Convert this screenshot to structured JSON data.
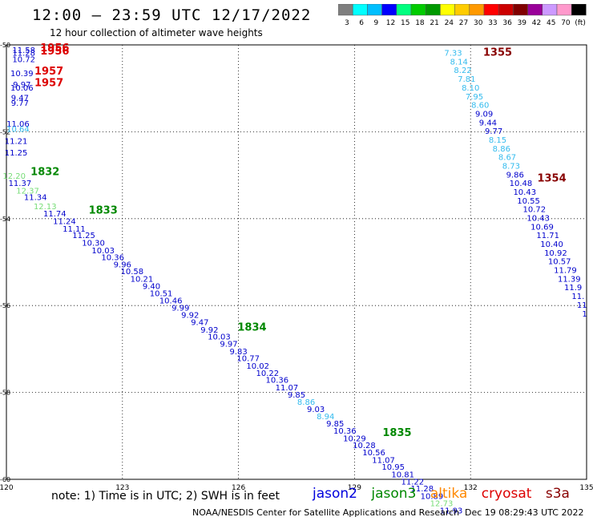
{
  "title": "12:00 – 23:59 UTC 12/17/2022",
  "subtitle": "12 hour collection of altimeter wave heights",
  "note": "note:  1) Time is in UTC;  2) SWH is in feet",
  "credit": "NOAA/NESDIS Center for Satellite Applications and Research",
  "generated": "Dec 19 08:29:43 UTC 2022",
  "legend": {
    "labels": [
      "3",
      "6",
      "9",
      "12",
      "15",
      "18",
      "21",
      "24",
      "27",
      "30",
      "33",
      "36",
      "39",
      "42",
      "45",
      "70",
      "(ft)"
    ],
    "colors": [
      "#7f7f7f",
      "#00ffff",
      "#00bfff",
      "#0000ff",
      "#00ff7f",
      "#00cc00",
      "#009900",
      "#ffff00",
      "#ffcc00",
      "#ff9900",
      "#ff0000",
      "#cc0000",
      "#800000",
      "#990099",
      "#cc99ff",
      "#ff99cc",
      "#000000"
    ]
  },
  "satellites": [
    {
      "name": "jason2",
      "color": "#0000dd"
    },
    {
      "name": "jason3",
      "color": "#008800"
    },
    {
      "name": "altika",
      "color": "#ff8800"
    },
    {
      "name": "cryosat",
      "color": "#dd0000"
    },
    {
      "name": "s3a",
      "color": "#880000"
    }
  ],
  "map": {
    "lon_range": [
      120,
      135
    ],
    "lat_range": [
      -60,
      -50
    ],
    "lon_ticks": [
      "120",
      "123",
      "126",
      "129",
      "132",
      "135"
    ],
    "lat_ticks": [
      "-50",
      "-52",
      "-54",
      "-56",
      "-58",
      "-60"
    ]
  },
  "observations": [
    {
      "lon": 120.45,
      "lat": -50.18,
      "v": "11.58",
      "c": "#0000cc"
    },
    {
      "lon": 120.45,
      "lat": -50.25,
      "v": "11.28",
      "c": "#0000cc"
    },
    {
      "lon": 120.45,
      "lat": -50.4,
      "v": "10.72",
      "c": "#0000cc"
    },
    {
      "lon": 120.4,
      "lat": -50.72,
      "v": "10.39",
      "c": "#0000cc"
    },
    {
      "lon": 120.4,
      "lat": -50.98,
      "v": "9.97",
      "c": "#0000cc"
    },
    {
      "lon": 120.4,
      "lat": -51.05,
      "v": "10.06",
      "c": "#0000cc"
    },
    {
      "lon": 120.35,
      "lat": -51.28,
      "v": "9.47",
      "c": "#0000cc"
    },
    {
      "lon": 120.35,
      "lat": -51.4,
      "v": "9.77",
      "c": "#0000cc"
    },
    {
      "lon": 120.3,
      "lat": -51.88,
      "v": "11.06",
      "c": "#0000cc"
    },
    {
      "lon": 120.3,
      "lat": -52.0,
      "v": "10.64",
      "c": "#33bbee"
    },
    {
      "lon": 120.25,
      "lat": -52.28,
      "v": "11.21",
      "c": "#0000cc"
    },
    {
      "lon": 120.25,
      "lat": -52.55,
      "v": "11.25",
      "c": "#0000cc"
    },
    {
      "lon": 120.2,
      "lat": -53.08,
      "v": "12.20",
      "c": "#77dd77"
    },
    {
      "lon": 120.35,
      "lat": -53.25,
      "v": "11.37",
      "c": "#0000cc"
    },
    {
      "lon": 120.55,
      "lat": -53.42,
      "v": "12.37",
      "c": "#77dd77"
    },
    {
      "lon": 120.75,
      "lat": -53.57,
      "v": "11.34",
      "c": "#0000cc"
    },
    {
      "lon": 121.0,
      "lat": -53.78,
      "v": "12.13",
      "c": "#77dd77"
    },
    {
      "lon": 121.25,
      "lat": -53.95,
      "v": "11.74",
      "c": "#0000cc"
    },
    {
      "lon": 121.5,
      "lat": -54.12,
      "v": "11.24",
      "c": "#0000cc"
    },
    {
      "lon": 121.75,
      "lat": -54.3,
      "v": "11.11",
      "c": "#0000cc"
    },
    {
      "lon": 122.0,
      "lat": -54.45,
      "v": "11.25",
      "c": "#0000cc"
    },
    {
      "lon": 122.25,
      "lat": -54.62,
      "v": "10.30",
      "c": "#0000cc"
    },
    {
      "lon": 122.5,
      "lat": -54.8,
      "v": "10.03",
      "c": "#0000cc"
    },
    {
      "lon": 122.75,
      "lat": -54.95,
      "v": "10.36",
      "c": "#0000cc"
    },
    {
      "lon": 123.0,
      "lat": -55.12,
      "v": "9.96",
      "c": "#0000cc"
    },
    {
      "lon": 123.25,
      "lat": -55.28,
      "v": "10.58",
      "c": "#0000cc"
    },
    {
      "lon": 123.5,
      "lat": -55.45,
      "v": "10.21",
      "c": "#0000cc"
    },
    {
      "lon": 123.75,
      "lat": -55.62,
      "v": "9.40",
      "c": "#0000cc"
    },
    {
      "lon": 124.0,
      "lat": -55.78,
      "v": "10.51",
      "c": "#0000cc"
    },
    {
      "lon": 124.25,
      "lat": -55.95,
      "v": "10.46",
      "c": "#0000cc"
    },
    {
      "lon": 124.5,
      "lat": -56.12,
      "v": "9.99",
      "c": "#0000cc"
    },
    {
      "lon": 124.75,
      "lat": -56.28,
      "v": "9.92",
      "c": "#0000cc"
    },
    {
      "lon": 125.0,
      "lat": -56.45,
      "v": "9.47",
      "c": "#0000cc"
    },
    {
      "lon": 125.25,
      "lat": -56.62,
      "v": "9.92",
      "c": "#0000cc"
    },
    {
      "lon": 125.5,
      "lat": -56.78,
      "v": "10.03",
      "c": "#0000cc"
    },
    {
      "lon": 125.75,
      "lat": -56.95,
      "v": "9.97",
      "c": "#0000cc"
    },
    {
      "lon": 126.0,
      "lat": -57.12,
      "v": "9.83",
      "c": "#0000cc"
    },
    {
      "lon": 126.25,
      "lat": -57.28,
      "v": "10.77",
      "c": "#0000cc"
    },
    {
      "lon": 126.5,
      "lat": -57.45,
      "v": "10.02",
      "c": "#0000cc"
    },
    {
      "lon": 126.75,
      "lat": -57.62,
      "v": "10.22",
      "c": "#0000cc"
    },
    {
      "lon": 127.0,
      "lat": -57.78,
      "v": "10.36",
      "c": "#0000cc"
    },
    {
      "lon": 127.25,
      "lat": -57.95,
      "v": "11.07",
      "c": "#0000cc"
    },
    {
      "lon": 127.5,
      "lat": -58.12,
      "v": "9.85",
      "c": "#0000cc"
    },
    {
      "lon": 127.75,
      "lat": -58.28,
      "v": "8.86",
      "c": "#33bbee"
    },
    {
      "lon": 128.0,
      "lat": -58.45,
      "v": "9.03",
      "c": "#0000cc"
    },
    {
      "lon": 128.25,
      "lat": -58.62,
      "v": "8.94",
      "c": "#33bbee"
    },
    {
      "lon": 128.5,
      "lat": -58.78,
      "v": "9.85",
      "c": "#0000cc"
    },
    {
      "lon": 128.75,
      "lat": -58.95,
      "v": "10.36",
      "c": "#0000cc"
    },
    {
      "lon": 129.0,
      "lat": -59.12,
      "v": "10.29",
      "c": "#0000cc"
    },
    {
      "lon": 129.25,
      "lat": -59.28,
      "v": "10.28",
      "c": "#0000cc"
    },
    {
      "lon": 129.5,
      "lat": -59.45,
      "v": "10.56",
      "c": "#0000cc"
    },
    {
      "lon": 129.75,
      "lat": -59.62,
      "v": "11.07",
      "c": "#0000cc"
    },
    {
      "lon": 130.0,
      "lat": -59.78,
      "v": "10.95",
      "c": "#0000cc"
    },
    {
      "lon": 130.25,
      "lat": -59.95,
      "v": "10.81",
      "c": "#0000cc"
    },
    {
      "lon": 130.5,
      "lat": -60.12,
      "v": "11.22",
      "c": "#0000cc"
    },
    {
      "lon": 130.75,
      "lat": -60.28,
      "v": "11.28",
      "c": "#0000cc"
    },
    {
      "lon": 131.0,
      "lat": -60.45,
      "v": "10.89",
      "c": "#0000cc"
    },
    {
      "lon": 131.25,
      "lat": -60.62,
      "v": "12.73",
      "c": "#77dd77"
    },
    {
      "lon": 131.5,
      "lat": -60.78,
      "v": "11.93",
      "c": "#0000cc"
    },
    {
      "lon": 131.55,
      "lat": -50.25,
      "v": "7.33",
      "c": "#33bbee"
    },
    {
      "lon": 131.7,
      "lat": -50.45,
      "v": "8.14",
      "c": "#33bbee"
    },
    {
      "lon": 131.8,
      "lat": -50.65,
      "v": "8.22",
      "c": "#33bbee"
    },
    {
      "lon": 131.9,
      "lat": -50.85,
      "v": "7.81",
      "c": "#33bbee"
    },
    {
      "lon": 132.0,
      "lat": -51.05,
      "v": "8.10",
      "c": "#33bbee"
    },
    {
      "lon": 132.1,
      "lat": -51.25,
      "v": "7.95",
      "c": "#33bbee"
    },
    {
      "lon": 132.25,
      "lat": -51.45,
      "v": "8.60",
      "c": "#33bbee"
    },
    {
      "lon": 132.35,
      "lat": -51.65,
      "v": "9.09",
      "c": "#0000cc"
    },
    {
      "lon": 132.45,
      "lat": -51.85,
      "v": "9.44",
      "c": "#0000cc"
    },
    {
      "lon": 132.6,
      "lat": -52.05,
      "v": "9.77",
      "c": "#0000cc"
    },
    {
      "lon": 132.7,
      "lat": -52.25,
      "v": "8.15",
      "c": "#33bbee"
    },
    {
      "lon": 132.8,
      "lat": -52.45,
      "v": "8.86",
      "c": "#33bbee"
    },
    {
      "lon": 132.95,
      "lat": -52.65,
      "v": "8.67",
      "c": "#33bbee"
    },
    {
      "lon": 133.05,
      "lat": -52.85,
      "v": "8.73",
      "c": "#33bbee"
    },
    {
      "lon": 133.15,
      "lat": -53.05,
      "v": "9.86",
      "c": "#0000cc"
    },
    {
      "lon": 133.3,
      "lat": -53.25,
      "v": "10.48",
      "c": "#0000cc"
    },
    {
      "lon": 133.4,
      "lat": -53.45,
      "v": "10.43",
      "c": "#0000cc"
    },
    {
      "lon": 133.5,
      "lat": -53.65,
      "v": "10.55",
      "c": "#0000cc"
    },
    {
      "lon": 133.65,
      "lat": -53.85,
      "v": "10.72",
      "c": "#0000cc"
    },
    {
      "lon": 133.75,
      "lat": -54.05,
      "v": "10.43",
      "c": "#0000cc"
    },
    {
      "lon": 133.85,
      "lat": -54.25,
      "v": "10.69",
      "c": "#0000cc"
    },
    {
      "lon": 134.0,
      "lat": -54.45,
      "v": "11.71",
      "c": "#0000cc"
    },
    {
      "lon": 134.1,
      "lat": -54.65,
      "v": "10.40",
      "c": "#0000cc"
    },
    {
      "lon": 134.2,
      "lat": -54.85,
      "v": "10.92",
      "c": "#0000cc"
    },
    {
      "lon": 134.3,
      "lat": -55.05,
      "v": "10.57",
      "c": "#0000cc"
    },
    {
      "lon": 134.45,
      "lat": -55.25,
      "v": "11.79",
      "c": "#0000cc"
    },
    {
      "lon": 134.55,
      "lat": -55.45,
      "v": "11.39",
      "c": "#0000cc"
    },
    {
      "lon": 134.65,
      "lat": -55.65,
      "v": "11.9",
      "c": "#0000cc"
    },
    {
      "lon": 134.78,
      "lat": -55.85,
      "v": "11.",
      "c": "#0000cc"
    },
    {
      "lon": 134.88,
      "lat": -56.05,
      "v": "11",
      "c": "#0000cc"
    },
    {
      "lon": 134.95,
      "lat": -56.25,
      "v": "1",
      "c": "#0000cc"
    }
  ],
  "time_labels": [
    {
      "lon": 121.25,
      "lat": -50.15,
      "t": "1956",
      "c": "#dd0000"
    },
    {
      "lon": 121.25,
      "lat": -50.22,
      "t": "1956",
      "c": "#dd0000"
    },
    {
      "lon": 121.1,
      "lat": -50.68,
      "t": "1957",
      "c": "#dd0000"
    },
    {
      "lon": 121.1,
      "lat": -50.95,
      "t": "1957",
      "c": "#dd0000"
    },
    {
      "lon": 121.0,
      "lat": -53.0,
      "t": "1832",
      "c": "#008800"
    },
    {
      "lon": 122.5,
      "lat": -53.88,
      "t": "1833",
      "c": "#008800"
    },
    {
      "lon": 126.35,
      "lat": -56.58,
      "t": "1834",
      "c": "#008800"
    },
    {
      "lon": 130.1,
      "lat": -59.0,
      "t": "1835",
      "c": "#008800"
    },
    {
      "lon": 132.7,
      "lat": -50.25,
      "t": "1355",
      "c": "#880000"
    },
    {
      "lon": 134.1,
      "lat": -53.15,
      "t": "1354",
      "c": "#880000"
    }
  ]
}
